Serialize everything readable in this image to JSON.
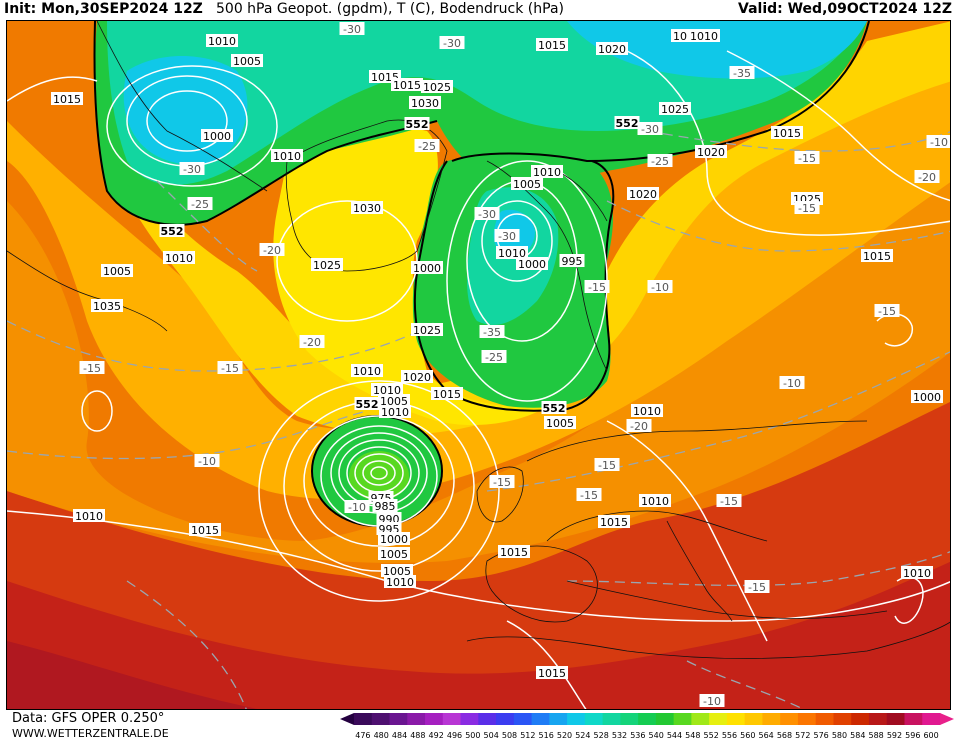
{
  "header": {
    "init": "Init: Mon,30SEP2024 12Z",
    "title": "500 hPa Geopot. (gpdm), T (C), Bodendruck (hPa)",
    "valid": "Valid: Wed,09OCT2024 12Z"
  },
  "footer": {
    "source": "Data: GFS OPER 0.250°",
    "website": "WWW.WETTERZENTRALE.DE"
  },
  "colorbar": {
    "ticks": [
      "476",
      "480",
      "484",
      "488",
      "492",
      "496",
      "500",
      "504",
      "508",
      "512",
      "516",
      "520",
      "524",
      "528",
      "532",
      "536",
      "540",
      "544",
      "548",
      "552",
      "556",
      "560",
      "564",
      "568",
      "572",
      "576",
      "580",
      "584",
      "588",
      "592",
      "596",
      "600"
    ],
    "colors": [
      "#3a0a5a",
      "#4e1070",
      "#6a1590",
      "#8a1aa8",
      "#a51fc0",
      "#b836d4",
      "#8a2be2",
      "#5a2ee8",
      "#3b3cf0",
      "#2a55f5",
      "#1f7cf5",
      "#17a5f0",
      "#10c8e8",
      "#0fd8c8",
      "#12d6a0",
      "#14d47a",
      "#14cc52",
      "#22c832",
      "#58d820",
      "#a0e818",
      "#e6ef10",
      "#ffe100",
      "#ffc800",
      "#ffac00",
      "#ff9000",
      "#fb7500",
      "#f05a00",
      "#e04000",
      "#cc2800",
      "#b81818",
      "#a00c20",
      "#c81260",
      "#e01890"
    ]
  },
  "map": {
    "geopotential_labels": [
      "552",
      "552",
      "552",
      "552",
      "552"
    ],
    "pressure_labels": [
      "1010",
      "1005",
      "1000",
      "1010",
      "1015",
      "1015",
      "1020",
      "1025",
      "1030",
      "1025",
      "1015",
      "1015",
      "1010",
      "1005",
      "1035",
      "1030",
      "1025",
      "1010",
      "1005",
      "1010",
      "1000",
      "995",
      "1000",
      "1025",
      "1020",
      "1015",
      "1020",
      "1025",
      "1020",
      "1015",
      "1010",
      "1005",
      "1000",
      "1010",
      "1005",
      "1010",
      "1015",
      "1010",
      "1010",
      "1015",
      "1015",
      "1005",
      "1010",
      "1015",
      "1010",
      "975",
      "985",
      "990",
      "995",
      "1000",
      "1005",
      "1010",
      "1015",
      "1010",
      "1010"
    ],
    "temperature_labels": [
      "-30",
      "-30",
      "-35",
      "-30",
      "-30",
      "-25",
      "-25",
      "-25",
      "-30",
      "-30",
      "-35",
      "-25",
      "-20",
      "-20",
      "-20",
      "-15",
      "-15",
      "-15",
      "-15",
      "-10",
      "-10",
      "-10",
      "-10",
      "-15",
      "-15",
      "-15",
      "-15",
      "-15",
      "-10",
      "-10",
      "-20",
      "-15",
      "-15"
    ]
  }
}
